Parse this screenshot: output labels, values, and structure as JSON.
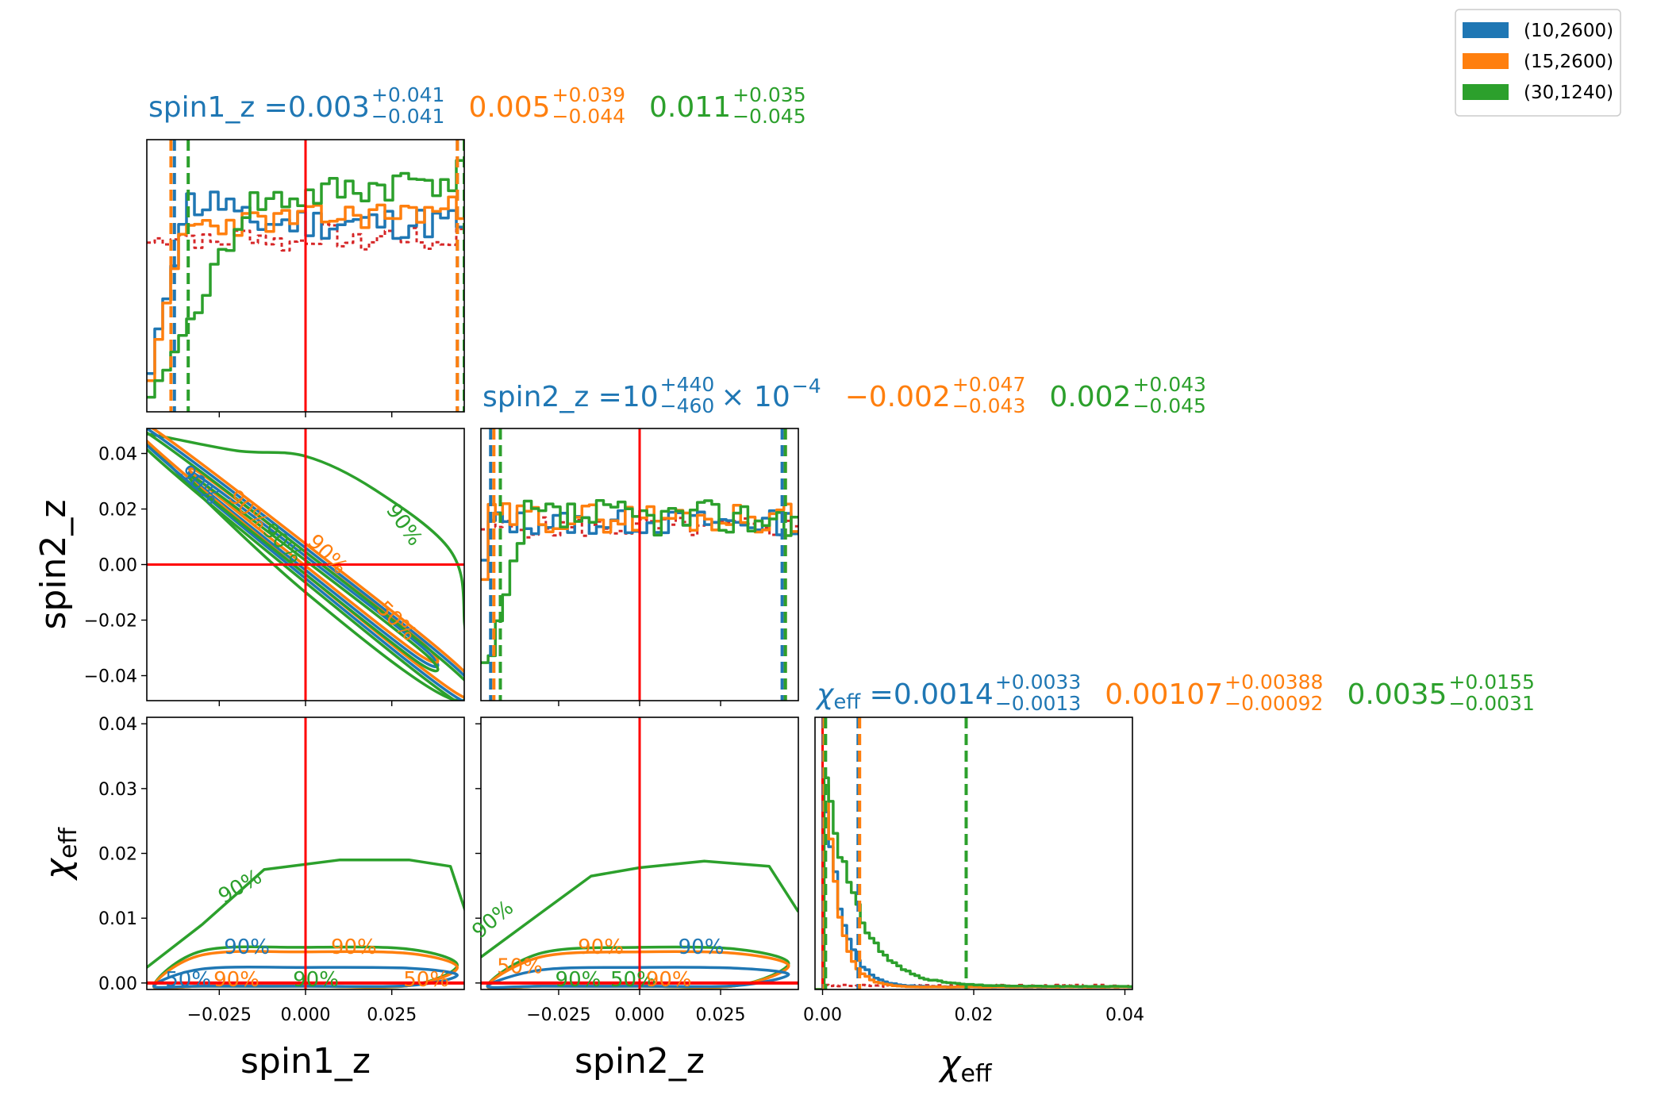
{
  "chart_data": {
    "type": "corner",
    "legend": {
      "placement": "top-right",
      "entries": [
        {
          "label": "(10,2600)",
          "color": "#1f77b4"
        },
        {
          "label": " (15,2600)",
          "color": "#ff7f0e"
        },
        {
          "label": "(30,1240)",
          "color": "#2ca02c"
        }
      ]
    },
    "colors": {
      "run1": "#1f77b4",
      "run2": "#ff7f0e",
      "run3": "#2ca02c",
      "truth": "#ff0000",
      "prior": "#d62728"
    },
    "axes": {
      "spin1_z": {
        "label": "spin1_z",
        "range": [
          -0.046,
          0.046
        ],
        "ticks": [
          -0.025,
          0.0,
          0.025
        ],
        "tick_labels": [
          "−0.025",
          "0.000",
          "0.025"
        ]
      },
      "spin2_z": {
        "label": "spin2_z",
        "range": [
          -0.049,
          0.049
        ],
        "ticks": [
          -0.04,
          -0.02,
          0.0,
          0.02,
          0.04
        ],
        "tick_labels": [
          "−0.04",
          "−0.02",
          "0.00",
          "0.02",
          "0.04"
        ],
        "x_ticks": [
          -0.025,
          0.0,
          0.025
        ],
        "x_tick_labels": [
          "−0.025",
          "0.000",
          "0.025"
        ]
      },
      "chi_eff": {
        "label": "χ",
        "label_sub": "eff",
        "range": [
          -0.001,
          0.041
        ],
        "ticks": [
          0.0,
          0.01,
          0.02,
          0.03,
          0.04
        ],
        "tick_labels": [
          "0.00",
          "0.01",
          "0.02",
          "0.03",
          "0.04"
        ],
        "x_ticks": [
          0.0,
          0.02,
          0.04
        ],
        "x_tick_labels": [
          "0.00",
          "0.02",
          "0.04"
        ]
      }
    },
    "titles": {
      "spin1_z": {
        "prefix": "spin1_z = ",
        "values": [
          {
            "value": "0.003",
            "plus": "+0.041",
            "minus": "−0.041"
          },
          {
            "value": "0.005",
            "plus": "+0.039",
            "minus": "−0.044"
          },
          {
            "value": "0.011",
            "plus": "+0.035",
            "minus": "−0.045"
          }
        ]
      },
      "spin2_z": {
        "prefix": "spin2_z = ",
        "values": [
          {
            "value": "10",
            "plus": "+440",
            "minus": "−460",
            "suffix": "× 10",
            "exponent": "−4"
          },
          {
            "value": "−0.002",
            "plus": "+0.047",
            "minus": "−0.043"
          },
          {
            "value": "0.002",
            "plus": "+0.043",
            "minus": "−0.045"
          }
        ]
      },
      "chi_eff": {
        "prefix": "χ",
        "prefix_sub": "eff",
        "prefix_rest": " = ",
        "values": [
          {
            "value": "0.0014",
            "plus": "+0.0033",
            "minus": "−0.0013"
          },
          {
            "value": "0.00107",
            "plus": "+0.00388",
            "minus": "−0.00092"
          },
          {
            "value": "0.0035",
            "plus": "+0.0155",
            "minus": "−0.0031"
          }
        ]
      }
    },
    "truth": {
      "spin1_z": 0.0,
      "spin2_z": 0.0,
      "chi_eff": 0.0
    },
    "quantiles": {
      "spin1_z": [
        [
          -0.038,
          0.044
        ],
        [
          -0.039,
          0.044
        ],
        [
          -0.034,
          0.046
        ]
      ],
      "spin2_z": [
        [
          -0.046,
          0.044
        ],
        [
          -0.045,
          0.045
        ],
        [
          -0.043,
          0.045
        ]
      ],
      "chi_eff": [
        [
          0.0001,
          0.0047
        ],
        [
          0.0002,
          0.0049
        ],
        [
          0.0004,
          0.019
        ]
      ]
    },
    "contour_labels": [
      "50%",
      "90%"
    ]
  }
}
